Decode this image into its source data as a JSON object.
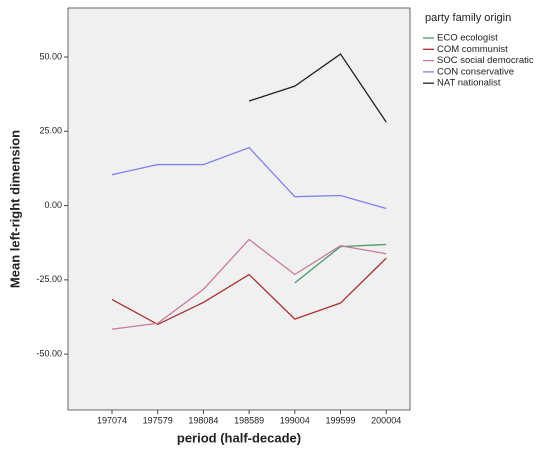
{
  "chart_data": {
    "type": "line",
    "x_label": "period (half-decade)",
    "y_label": "Mean left-right dimension",
    "legend_title": "party family origin",
    "legend_position": "right",
    "categories": [
      "197074",
      "197579",
      "198084",
      "198589",
      "199004",
      "199599",
      "200004"
    ],
    "series": [
      {
        "name": "ECO ecologist",
        "color": "#4a9a6a",
        "values": [
          null,
          null,
          null,
          null,
          -26.0,
          -13.8,
          -13.1
        ]
      },
      {
        "name": "COM communist",
        "color": "#a83232",
        "values": [
          -31.6,
          -40.0,
          -32.6,
          -23.2,
          -38.2,
          -32.8,
          -17.7
        ]
      },
      {
        "name": "SOC social democratic",
        "color": "#c87aa0",
        "values": [
          -41.6,
          -39.6,
          -28.2,
          -11.4,
          -23.2,
          -13.5,
          -16.2
        ]
      },
      {
        "name": "CON conservative",
        "color": "#8080f0",
        "values": [
          10.4,
          13.8,
          13.8,
          19.5,
          3.0,
          3.4,
          -1.0
        ]
      },
      {
        "name": "NAT nationalist",
        "color": "#222222",
        "values": [
          null,
          null,
          null,
          35.2,
          40.2,
          51.0,
          28.1
        ]
      }
    ],
    "ylim": [
      -68.8,
      66.5
    ],
    "yticks": [
      {
        "value": -50,
        "label": "-50.00"
      },
      {
        "value": -25,
        "label": "-25.00"
      },
      {
        "value": 0,
        "label": "0.00"
      },
      {
        "value": 25,
        "label": "25.00"
      },
      {
        "value": 50,
        "label": "50.00"
      }
    ],
    "background": "#f0f0f0"
  }
}
